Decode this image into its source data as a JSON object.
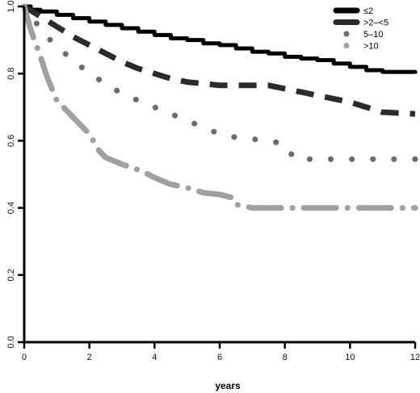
{
  "chart_data": {
    "type": "line",
    "title": "",
    "xlabel": "years",
    "ylabel": "",
    "xlim": [
      0,
      12
    ],
    "ylim": [
      0,
      1.0
    ],
    "xticks": [
      "0",
      "2",
      "4",
      "6",
      "8",
      "10",
      "12"
    ],
    "yticks": [
      "0.0",
      "0.2",
      "0.4",
      "0.6",
      "0.8",
      "1.0"
    ],
    "grid": false,
    "legend_position": "top-right",
    "series": [
      {
        "name": "≤2",
        "color": "#000000",
        "style": "solid",
        "points": [
          [
            0,
            1.0
          ],
          [
            0.2,
            0.99
          ],
          [
            0.5,
            0.985
          ],
          [
            1,
            0.975
          ],
          [
            1.5,
            0.965
          ],
          [
            2,
            0.955
          ],
          [
            2.5,
            0.945
          ],
          [
            3,
            0.935
          ],
          [
            3.5,
            0.925
          ],
          [
            4,
            0.915
          ],
          [
            4.5,
            0.905
          ],
          [
            5,
            0.9
          ],
          [
            5.5,
            0.89
          ],
          [
            6,
            0.885
          ],
          [
            6.5,
            0.875
          ],
          [
            7,
            0.865
          ],
          [
            7.5,
            0.86
          ],
          [
            8,
            0.85
          ],
          [
            8.5,
            0.845
          ],
          [
            9,
            0.84
          ],
          [
            9.5,
            0.83
          ],
          [
            10,
            0.82
          ],
          [
            10.5,
            0.81
          ],
          [
            11,
            0.805
          ],
          [
            12,
            0.8
          ]
        ]
      },
      {
        "name": ">2–<5",
        "color": "#2b2b2b",
        "style": "dashed",
        "points": [
          [
            0,
            1.0
          ],
          [
            0.5,
            0.97
          ],
          [
            1,
            0.94
          ],
          [
            1.5,
            0.91
          ],
          [
            2,
            0.885
          ],
          [
            2.5,
            0.86
          ],
          [
            3,
            0.835
          ],
          [
            3.5,
            0.815
          ],
          [
            4,
            0.8
          ],
          [
            4.5,
            0.785
          ],
          [
            5,
            0.775
          ],
          [
            5.5,
            0.77
          ],
          [
            6,
            0.765
          ],
          [
            6.5,
            0.765
          ],
          [
            7,
            0.765
          ],
          [
            7.5,
            0.765
          ],
          [
            8,
            0.755
          ],
          [
            8.5,
            0.745
          ],
          [
            9,
            0.735
          ],
          [
            9.5,
            0.725
          ],
          [
            10,
            0.715
          ],
          [
            10.5,
            0.7
          ],
          [
            11,
            0.685
          ],
          [
            12,
            0.68
          ]
        ]
      },
      {
        "name": "5–10",
        "color": "#6b6b6b",
        "style": "dotted",
        "points": [
          [
            0,
            1.0
          ],
          [
            0.3,
            0.96
          ],
          [
            0.6,
            0.92
          ],
          [
            1,
            0.88
          ],
          [
            1.5,
            0.84
          ],
          [
            2,
            0.8
          ],
          [
            2.5,
            0.77
          ],
          [
            3,
            0.74
          ],
          [
            3.5,
            0.72
          ],
          [
            4,
            0.7
          ],
          [
            4.5,
            0.68
          ],
          [
            5,
            0.66
          ],
          [
            5.5,
            0.64
          ],
          [
            6,
            0.62
          ],
          [
            6.5,
            0.61
          ],
          [
            7,
            0.605
          ],
          [
            7.5,
            0.6
          ],
          [
            8,
            0.59
          ],
          [
            8.3,
            0.545
          ],
          [
            9,
            0.545
          ],
          [
            10,
            0.545
          ],
          [
            11,
            0.545
          ],
          [
            12,
            0.545
          ]
        ]
      },
      {
        "name": ">10",
        "color": "#a0a0a0",
        "style": "dash-dot",
        "points": [
          [
            0,
            1.0
          ],
          [
            0.2,
            0.93
          ],
          [
            0.5,
            0.85
          ],
          [
            0.7,
            0.79
          ],
          [
            1,
            0.72
          ],
          [
            1.5,
            0.67
          ],
          [
            2,
            0.62
          ],
          [
            2.3,
            0.57
          ],
          [
            2.5,
            0.55
          ],
          [
            3,
            0.53
          ],
          [
            3.3,
            0.52
          ],
          [
            3.6,
            0.51
          ],
          [
            4,
            0.49
          ],
          [
            4.5,
            0.47
          ],
          [
            5,
            0.46
          ],
          [
            5.5,
            0.445
          ],
          [
            6,
            0.44
          ],
          [
            6.4,
            0.43
          ],
          [
            6.5,
            0.41
          ],
          [
            7,
            0.4
          ],
          [
            8,
            0.4
          ],
          [
            9,
            0.4
          ],
          [
            10,
            0.4
          ],
          [
            11,
            0.4
          ],
          [
            12,
            0.4
          ]
        ]
      }
    ]
  }
}
